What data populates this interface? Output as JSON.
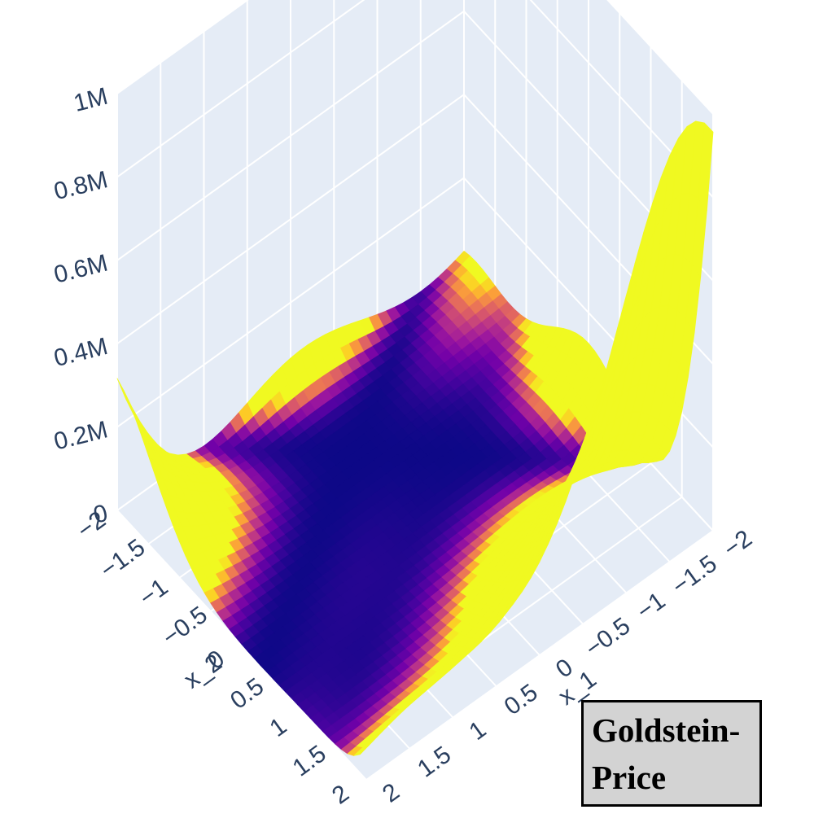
{
  "chart_data": {
    "type": "surface",
    "title": "Goldstein-Price",
    "function": "goldstein_price",
    "x_axis": {
      "label": "x_1",
      "range": [
        -2,
        2
      ],
      "ticks": [
        "−2",
        "−1.5",
        "−1",
        "−0.5",
        "0",
        "0.5",
        "1",
        "1.5",
        "2"
      ]
    },
    "y_axis": {
      "label": "x_2",
      "range": [
        -2,
        2
      ],
      "ticks": [
        "−2",
        "−1.5",
        "−1",
        "−0.5",
        "0",
        "0.5",
        "1",
        "1.5",
        "2"
      ]
    },
    "z_axis": {
      "range": [
        0,
        1000000
      ],
      "ticks": [
        "0",
        "0.2M",
        "0.4M",
        "0.6M",
        "0.8M",
        "1M"
      ]
    },
    "colorscale": "plasma",
    "grid": true,
    "background": "#e5ecf6",
    "gridline_color": "#ffffff"
  }
}
